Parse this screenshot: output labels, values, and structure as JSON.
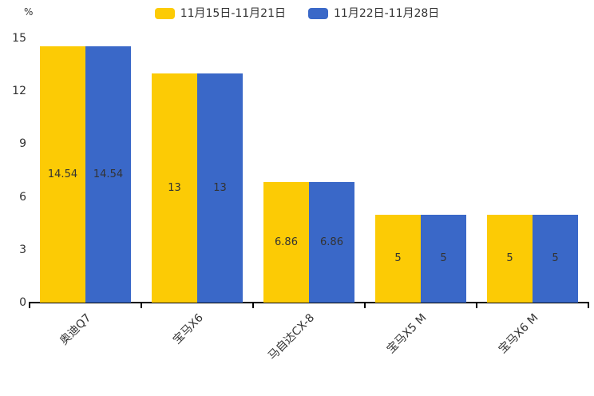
{
  "chart_data": {
    "type": "bar",
    "title": "",
    "categories": [
      "奥迪Q7",
      "宝马X6",
      "马自达CX-8",
      "宝马X5 M",
      "宝马X6 M"
    ],
    "series": [
      {
        "name": "11月15日-11月21日",
        "color": "#FCCB05",
        "values": [
          14.54,
          13,
          6.86,
          5,
          5
        ]
      },
      {
        "name": "11月22日-11月28日",
        "color": "#3A68C8",
        "values": [
          14.54,
          13,
          6.86,
          5,
          5
        ]
      }
    ],
    "value_labels": [
      [
        "14.54",
        "13",
        "6.86",
        "5",
        "5"
      ],
      [
        "14.54",
        "13",
        "6.86",
        "5",
        "5"
      ]
    ],
    "xlabel": "",
    "ylabel": "%",
    "ylim": [
      0,
      15
    ],
    "yticks": [
      0,
      3,
      6,
      9,
      12,
      15
    ],
    "grid": false,
    "legend_position": "top",
    "x_label_rotation_deg": 45
  },
  "colors": {
    "background": "#ffffff",
    "axis_line": "#000000",
    "text": "#333333"
  }
}
